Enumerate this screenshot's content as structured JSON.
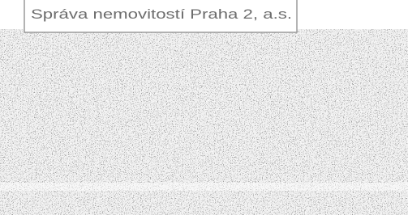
{
  "header": {
    "label": "Správa nemovitostí Praha 2, a.s."
  }
}
